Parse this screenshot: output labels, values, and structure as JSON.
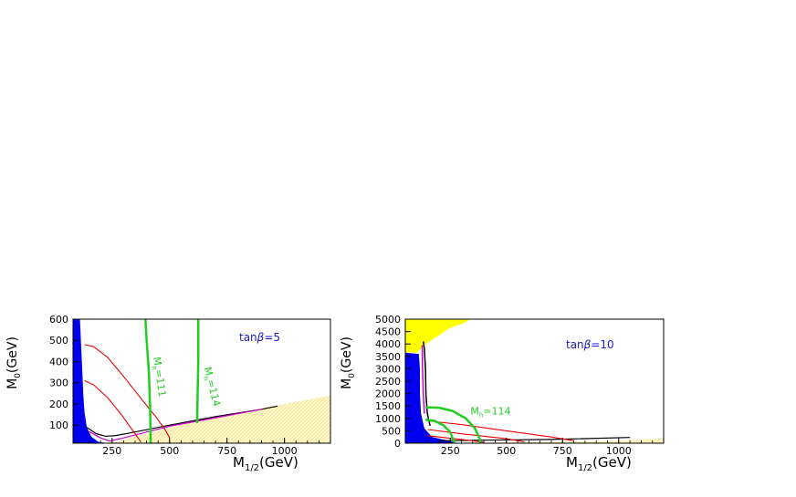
{
  "chart_data": [
    {
      "type": "line",
      "xlabel": "M₁₂(GeV)",
      "xlabel_main": "M",
      "xlabel_sub": "1/2",
      "xlabel_unit": "(GeV)",
      "ylabel_main": "M",
      "ylabel_sub": "0",
      "ylabel_unit": "(GeV)",
      "xlim": [
        80,
        1200
      ],
      "ylim": [
        15,
        600
      ],
      "xticks": [
        250,
        500,
        750,
        1000
      ],
      "yticks": [
        100,
        200,
        300,
        400,
        500,
        600
      ],
      "annotation": {
        "text_main": "tan",
        "text_beta": "β",
        "text_rest": "=5",
        "color": "#1a1acc"
      },
      "regions": [
        {
          "name": "excluded-lsp-charged",
          "color": "#0000ee",
          "points": [
            [
              80,
              600
            ],
            [
              110,
              600
            ],
            [
              115,
              480
            ],
            [
              120,
              360
            ],
            [
              125,
              240
            ],
            [
              130,
              160
            ],
            [
              140,
              90
            ],
            [
              160,
              45
            ],
            [
              190,
              22
            ],
            [
              230,
              15
            ],
            [
              80,
              15
            ]
          ]
        },
        {
          "name": "stau-lsp",
          "color": "#fff4b0",
          "points": [
            [
              240,
              15
            ],
            [
              600,
              115
            ],
            [
              1000,
              200
            ],
            [
              1200,
              240
            ],
            [
              1200,
              15
            ]
          ]
        }
      ],
      "series": [
        {
          "name": "relic-black",
          "color": "#000000",
          "width": 1.2,
          "points": [
            [
              140,
              90
            ],
            [
              180,
              60
            ],
            [
              220,
              48
            ],
            [
              260,
              50
            ],
            [
              350,
              68
            ],
            [
              500,
              100
            ],
            [
              700,
              140
            ],
            [
              900,
              175
            ],
            [
              970,
              190
            ]
          ]
        },
        {
          "name": "relic-magenta",
          "color": "#cc00cc",
          "width": 1.2,
          "points": [
            [
              150,
              70
            ],
            [
              200,
              40
            ],
            [
              240,
              25
            ],
            [
              300,
              40
            ],
            [
              500,
              95
            ],
            [
              700,
              135
            ],
            [
              900,
              175
            ]
          ]
        },
        {
          "name": "red-contour-1",
          "color": "#ee0000",
          "width": 1.1,
          "points": [
            [
              130,
              480
            ],
            [
              170,
              470
            ],
            [
              230,
              420
            ],
            [
              300,
              330
            ],
            [
              380,
              220
            ],
            [
              440,
              140
            ],
            [
              480,
              80
            ],
            [
              500,
              40
            ]
          ]
        },
        {
          "name": "red-contour-2",
          "color": "#ee0000",
          "width": 1.1,
          "points": [
            [
              130,
              310
            ],
            [
              170,
              290
            ],
            [
              230,
              230
            ],
            [
              290,
              150
            ],
            [
              330,
              90
            ],
            [
              360,
              45
            ],
            [
              375,
              20
            ]
          ]
        },
        {
          "name": "mh-111",
          "color": "#22cc22",
          "width": 2.5,
          "points": [
            [
              395,
              600
            ],
            [
              400,
              500
            ],
            [
              410,
              350
            ],
            [
              415,
              200
            ],
            [
              418,
              15
            ]
          ]
        },
        {
          "name": "mh-114",
          "color": "#22cc22",
          "width": 2.5,
          "points": [
            [
              625,
              600
            ],
            [
              625,
              400
            ],
            [
              622,
              250
            ],
            [
              620,
              110
            ]
          ]
        }
      ],
      "labels": [
        {
          "name": "mh-111-label",
          "text_main": "M",
          "text_sub": "h",
          "text_rest": "=111",
          "x": 430,
          "y": 420,
          "rotate": 82,
          "color": "#22cc22"
        },
        {
          "name": "mh-114-label",
          "text_main": "M",
          "text_sub": "h",
          "text_rest": "=114",
          "x": 650,
          "y": 370,
          "rotate": 76,
          "color": "#22cc22"
        }
      ]
    },
    {
      "type": "line",
      "xlabel": "M₁₂(GeV)",
      "xlabel_main": "M",
      "xlabel_sub": "1/2",
      "xlabel_unit": "(GeV)",
      "ylabel_main": "M",
      "ylabel_sub": "0",
      "ylabel_unit": "(GeV)",
      "xlim": [
        50,
        1200
      ],
      "ylim": [
        0,
        5000
      ],
      "xticks": [
        250,
        500,
        750,
        1000
      ],
      "yticks": [
        0,
        500,
        1000,
        1500,
        2000,
        2500,
        3000,
        3500,
        4000,
        4500,
        5000
      ],
      "annotation": {
        "text_main": "tan",
        "text_beta": "β",
        "text_rest": "=10",
        "color": "#1a1acc"
      },
      "regions": [
        {
          "name": "no-ewsb",
          "color": "#ffff00",
          "points": [
            [
              50,
              5000
            ],
            [
              340,
              5000
            ],
            [
              310,
              4850
            ],
            [
              250,
              4650
            ],
            [
              200,
              4350
            ],
            [
              150,
              4050
            ],
            [
              100,
              3650
            ],
            [
              50,
              3650
            ]
          ]
        },
        {
          "name": "excluded-lsp-charged",
          "color": "#0000ee",
          "points": [
            [
              50,
              3650
            ],
            [
              110,
              3600
            ],
            [
              115,
              3000
            ],
            [
              115,
              2000
            ],
            [
              120,
              1200
            ],
            [
              135,
              600
            ],
            [
              170,
              250
            ],
            [
              250,
              80
            ],
            [
              280,
              0
            ],
            [
              50,
              0
            ]
          ]
        },
        {
          "name": "stau-lsp",
          "color": "#fff4b0",
          "points": [
            [
              280,
              0
            ],
            [
              1000,
              100
            ],
            [
              1200,
              200
            ],
            [
              1200,
              0
            ]
          ]
        }
      ],
      "series": [
        {
          "name": "focus-point-black",
          "color": "#000000",
          "width": 1.5,
          "points": [
            [
              130,
              4100
            ],
            [
              135,
              3800
            ],
            [
              140,
              3000
            ],
            [
              142,
              2000
            ],
            [
              148,
              1200
            ],
            [
              160,
              700
            ]
          ]
        },
        {
          "name": "focus-point-magenta",
          "color": "#cc00cc",
          "width": 1.5,
          "points": [
            [
              125,
              3950
            ],
            [
              127,
              3000
            ],
            [
              130,
              2000
            ],
            [
              135,
              1200
            ]
          ]
        },
        {
          "name": "relic-black",
          "color": "#000000",
          "width": 1.2,
          "points": [
            [
              200,
              100
            ],
            [
              400,
              120
            ],
            [
              700,
              150
            ],
            [
              1050,
              230
            ]
          ]
        },
        {
          "name": "red-contour-1",
          "color": "#ee0000",
          "width": 1.1,
          "points": [
            [
              150,
              900
            ],
            [
              300,
              750
            ],
            [
              500,
              500
            ],
            [
              700,
              250
            ],
            [
              800,
              100
            ]
          ]
        },
        {
          "name": "red-contour-2",
          "color": "#ee0000",
          "width": 1.1,
          "points": [
            [
              150,
              550
            ],
            [
              300,
              380
            ],
            [
              500,
              180
            ],
            [
              580,
              50
            ]
          ]
        },
        {
          "name": "red-contour-3",
          "color": "#ee0000",
          "width": 1.1,
          "points": [
            [
              150,
              300
            ],
            [
              300,
              150
            ],
            [
              400,
              40
            ]
          ]
        },
        {
          "name": "mh-114",
          "color": "#22cc22",
          "width": 2.5,
          "points": [
            [
              140,
              1450
            ],
            [
              200,
              1430
            ],
            [
              260,
              1300
            ],
            [
              320,
              1000
            ],
            [
              360,
              600
            ],
            [
              380,
              200
            ],
            [
              385,
              0
            ]
          ]
        },
        {
          "name": "mh-111",
          "color": "#22cc22",
          "width": 2.5,
          "points": [
            [
              140,
              950
            ],
            [
              180,
              900
            ],
            [
              220,
              720
            ],
            [
              250,
              450
            ],
            [
              265,
              100
            ],
            [
              268,
              0
            ]
          ]
        }
      ],
      "labels": [
        {
          "name": "mh-114-label",
          "text_main": "M",
          "text_sub": "h",
          "text_rest": "=114",
          "x": 340,
          "y": 1150,
          "rotate": 0,
          "color": "#22cc22"
        }
      ]
    }
  ]
}
